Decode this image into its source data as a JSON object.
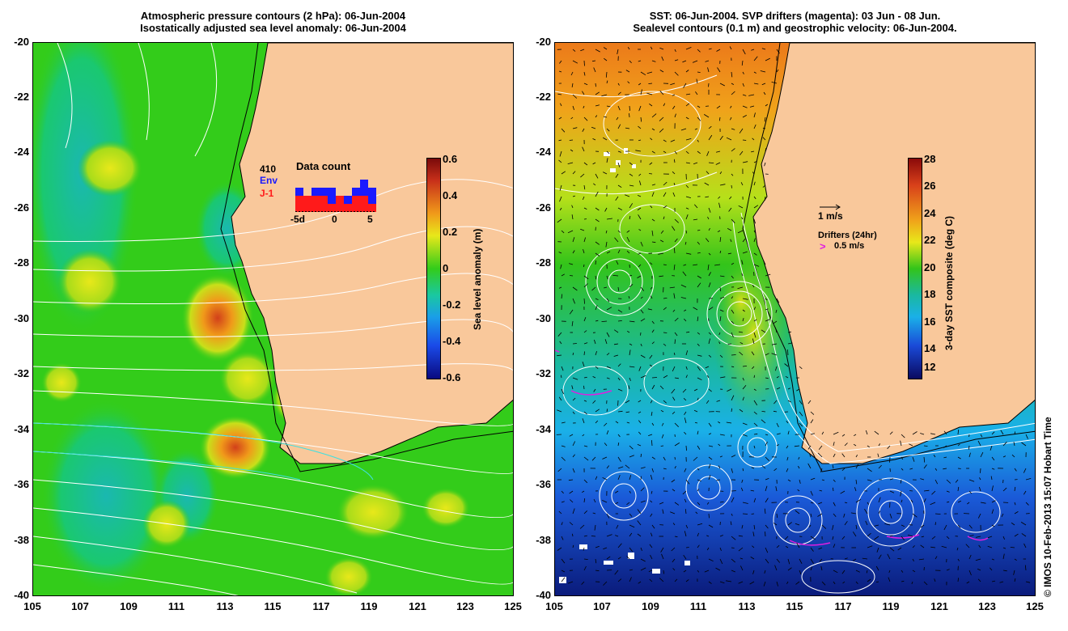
{
  "left_panel": {
    "title_line1": "Atmospheric pressure contours (2 hPa): 06-Jun-2004",
    "title_line2": "Isostatically adjusted sea level anomaly: 06-Jun-2004",
    "y_ticks": [
      "-20",
      "-22",
      "-24",
      "-26",
      "-28",
      "-30",
      "-32",
      "-34",
      "-36",
      "-38",
      "-40"
    ],
    "x_ticks": [
      "105",
      "107",
      "109",
      "111",
      "113",
      "115",
      "117",
      "119",
      "121",
      "123",
      "125"
    ],
    "colorbar_label": "Sea level anomaly (m)",
    "colorbar_ticks": [
      "0.6",
      "0.4",
      "0.2",
      "0",
      "-0.2",
      "-0.4",
      "-0.6"
    ],
    "inset": {
      "title": "Data count",
      "count": "410",
      "env_label": "Env",
      "j1_label": "J-1",
      "x_ticks": [
        "-5d",
        "0",
        "5"
      ],
      "env_values": [
        3,
        2,
        3,
        3,
        3,
        2,
        2,
        3,
        4,
        3
      ],
      "j1_values": [
        2,
        2,
        2,
        2,
        1,
        2,
        1,
        2,
        2,
        1
      ],
      "colors": {
        "env": "#1a1aff",
        "j1": "#ff1a1a"
      }
    }
  },
  "right_panel": {
    "title_line1": "SST: 06-Jun-2004. SVP drifters (magenta): 03 Jun - 08 Jun.",
    "title_line2": "Sealevel contours (0.1 m) and geostrophic velocity: 06-Jun-2004.",
    "y_ticks": [
      "-20",
      "-22",
      "-24",
      "-26",
      "-28",
      "-30",
      "-32",
      "-34",
      "-36",
      "-38",
      "-40"
    ],
    "x_ticks": [
      "105",
      "107",
      "109",
      "111",
      "113",
      "115",
      "117",
      "119",
      "121",
      "123",
      "125"
    ],
    "colorbar_label": "3-day SST composite (deg C)",
    "colorbar_ticks": [
      "28",
      "26",
      "24",
      "22",
      "20",
      "18",
      "16",
      "14",
      "12"
    ],
    "velocity_scale_label": "1 m/s",
    "drifters_label": "Drifters (24hr)",
    "drifters_scale_label": "0.5 m/s"
  },
  "copyright": "© IMOS 10-Feb-2013 15:07 Hobart Time",
  "colors": {
    "land": "#f9c89b",
    "ocean_green": "#33cc1a",
    "magenta": "#e01ee0"
  }
}
